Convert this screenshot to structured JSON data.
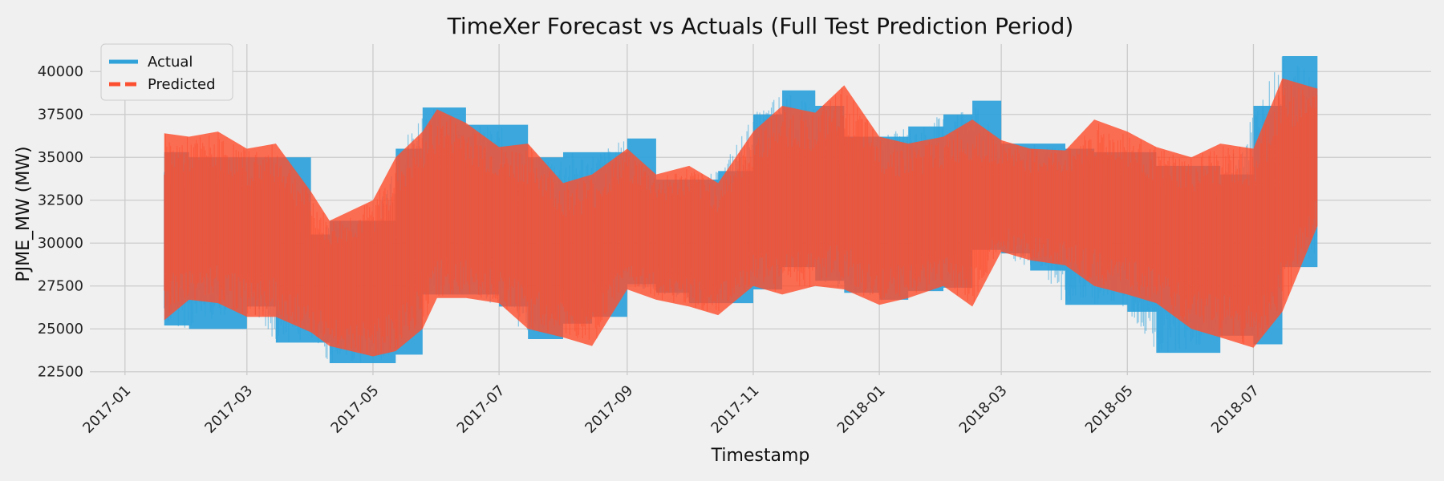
{
  "chart_data": {
    "type": "area",
    "title": "TimeXer Forecast vs Actuals (Full Test Prediction Period)",
    "xlabel": "Timestamp",
    "ylabel": "PJME_MW (MW)",
    "xlim": [
      "2016-12-15",
      "2018-09-25"
    ],
    "ylim": [
      22300,
      41600
    ],
    "grid": true,
    "legend_position": "top-left",
    "x_ticks": [
      "2017-01",
      "2017-03",
      "2017-05",
      "2017-07",
      "2017-09",
      "2017-11",
      "2018-01",
      "2018-03",
      "2018-05",
      "2018-07"
    ],
    "y_ticks": [
      22500,
      25000,
      27500,
      30000,
      32500,
      35000,
      37500,
      40000
    ],
    "colors": {
      "Actual": "#30a2da",
      "Predicted": "#fc4f30"
    },
    "series": [
      {
        "name": "Actual",
        "style": "solid",
        "x": [
          "2017-01-20",
          "2017-02-01",
          "2017-03-01",
          "2017-03-15",
          "2017-04-01",
          "2017-04-10",
          "2017-05-01",
          "2017-05-12",
          "2017-05-25",
          "2017-06-01",
          "2017-06-15",
          "2017-07-01",
          "2017-07-15",
          "2017-08-01",
          "2017-08-15",
          "2017-09-01",
          "2017-09-15",
          "2017-10-01",
          "2017-10-15",
          "2017-11-01",
          "2017-11-15",
          "2017-12-01",
          "2017-12-15",
          "2018-01-01",
          "2018-01-15",
          "2018-02-01",
          "2018-02-15",
          "2018-03-01",
          "2018-03-15",
          "2018-04-01",
          "2018-04-15",
          "2018-05-01",
          "2018-05-15",
          "2018-06-01",
          "2018-06-15",
          "2018-07-01",
          "2018-07-15",
          "2018-08-01"
        ],
        "high": [
          35300,
          35000,
          35000,
          35000,
          30500,
          31300,
          31300,
          35500,
          37900,
          37900,
          36900,
          36900,
          35000,
          35300,
          35300,
          36100,
          33700,
          33700,
          34200,
          37500,
          38900,
          38000,
          36200,
          36200,
          36800,
          37500,
          38300,
          35800,
          35800,
          35500,
          35300,
          35300,
          34500,
          34500,
          34000,
          38000,
          40900,
          39700
        ],
        "low": [
          25200,
          25000,
          26300,
          24200,
          24200,
          23000,
          23000,
          23500,
          27000,
          27000,
          27000,
          26300,
          24400,
          25300,
          25700,
          27600,
          27100,
          26500,
          26500,
          27300,
          28600,
          27800,
          27100,
          26700,
          27200,
          27400,
          29600,
          29400,
          28400,
          26400,
          26400,
          26000,
          23600,
          23600,
          24600,
          24100,
          28600,
          28600
        ]
      },
      {
        "name": "Predicted",
        "style": "dashed",
        "x": [
          "2017-01-20",
          "2017-02-01",
          "2017-02-15",
          "2017-03-01",
          "2017-03-15",
          "2017-04-01",
          "2017-04-10",
          "2017-05-01",
          "2017-05-12",
          "2017-05-25",
          "2017-06-01",
          "2017-06-15",
          "2017-07-01",
          "2017-07-15",
          "2017-08-01",
          "2017-08-15",
          "2017-09-01",
          "2017-09-15",
          "2017-10-01",
          "2017-10-15",
          "2017-11-01",
          "2017-11-15",
          "2017-12-01",
          "2017-12-15",
          "2018-01-01",
          "2018-01-15",
          "2018-02-01",
          "2018-02-15",
          "2018-03-01",
          "2018-03-15",
          "2018-04-01",
          "2018-04-15",
          "2018-05-01",
          "2018-05-15",
          "2018-06-01",
          "2018-06-15",
          "2018-07-01",
          "2018-07-15",
          "2018-08-01"
        ],
        "high": [
          36400,
          36200,
          36500,
          35500,
          35800,
          33000,
          31300,
          32500,
          35000,
          36500,
          37800,
          37000,
          35600,
          35800,
          33500,
          34000,
          35500,
          34000,
          34500,
          33500,
          36500,
          38000,
          37600,
          39200,
          36200,
          35800,
          36200,
          37200,
          36000,
          35500,
          35400,
          37200,
          36500,
          35600,
          35000,
          35800,
          35500,
          39600,
          39000
        ],
        "low": [
          25500,
          26700,
          26500,
          25700,
          25700,
          24800,
          24000,
          23400,
          23700,
          25000,
          26800,
          26800,
          26500,
          25000,
          24500,
          24000,
          27300,
          26700,
          26300,
          25800,
          27500,
          27000,
          27500,
          27300,
          26400,
          26800,
          27500,
          26300,
          29500,
          29000,
          28700,
          27500,
          27000,
          26500,
          25000,
          24500,
          23900,
          26000,
          31000
        ]
      }
    ]
  }
}
